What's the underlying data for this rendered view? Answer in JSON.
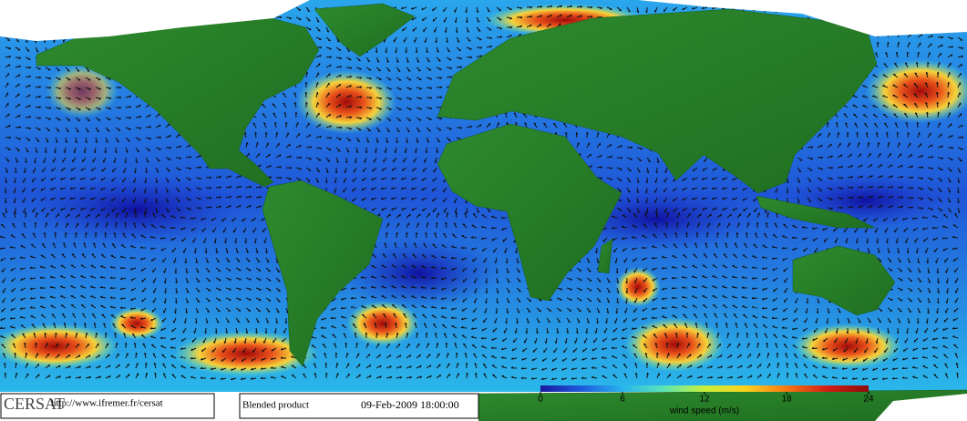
{
  "header": {
    "logo": "CERSAT",
    "url": "http://www.ifremer.fr/cersat",
    "product": "Blended product",
    "timestamp": "09-Feb-2009 18:00:00"
  },
  "colorbar": {
    "label": "wind speed (m/s)",
    "range": [
      0,
      24
    ],
    "ticks": [
      0,
      6,
      12,
      18,
      24
    ],
    "colors": [
      "#1a1aa0",
      "#1e5adc",
      "#28b4f0",
      "#5ae6b4",
      "#c8f03c",
      "#fad21e",
      "#f57814",
      "#d21e14",
      "#8c0a0a"
    ]
  }
}
